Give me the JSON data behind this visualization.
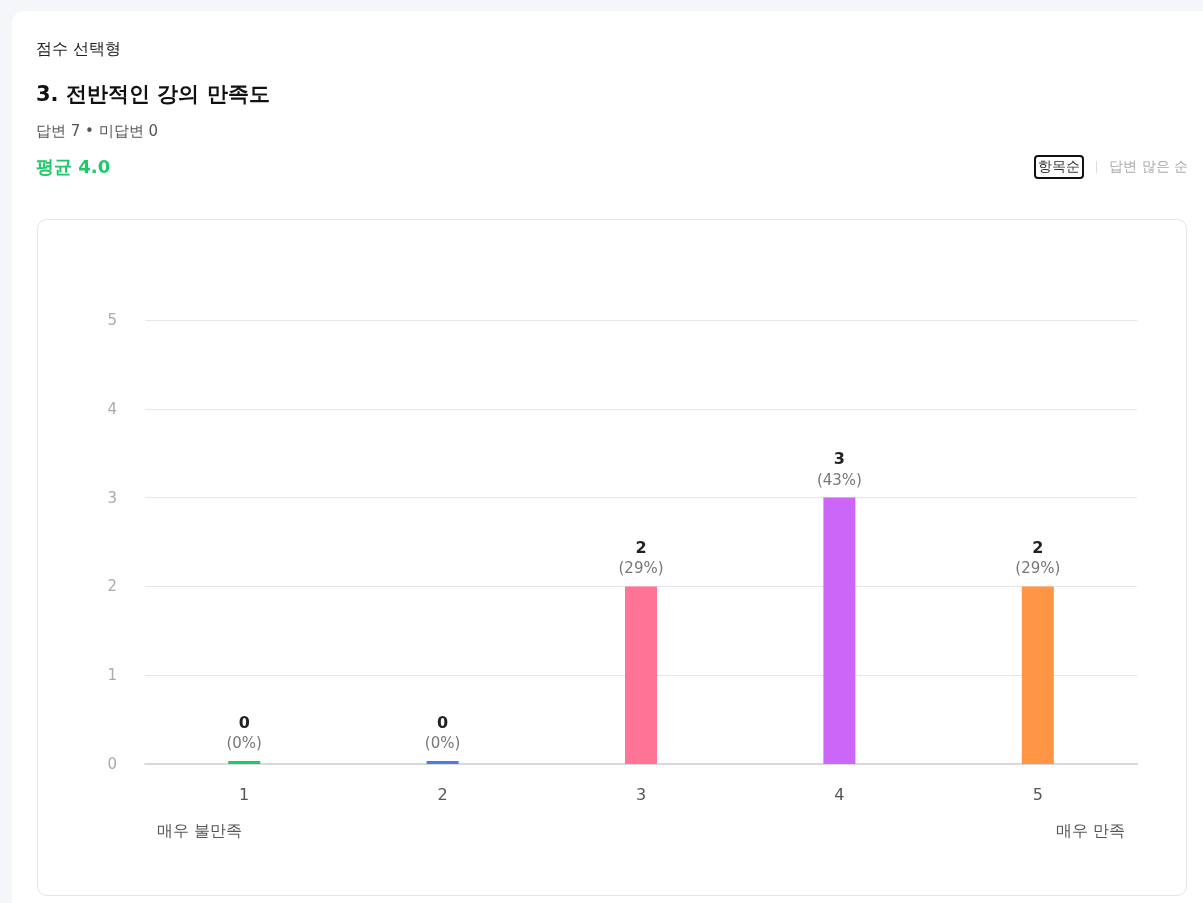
{
  "chart_data": {
    "type": "bar",
    "subtitle": "점수 선택형",
    "title": "3. 전반적인 강의 만족도",
    "categories": [
      "1",
      "2",
      "3",
      "4",
      "5"
    ],
    "values": [
      0,
      0,
      2,
      3,
      2
    ],
    "colors": [
      "#1ec86b",
      "#4b7be5",
      "#ff7396",
      "#cc66f8",
      "#ff9545"
    ],
    "value_labels": [
      "0\n(0%)",
      "0\n(0%)",
      "2\n(29%)",
      "3\n(43%)",
      "2\n(29%)"
    ],
    "ylim": [
      0,
      5
    ],
    "yticks": [
      0,
      1,
      2,
      3,
      4,
      5
    ],
    "grid": "y",
    "annotations": [
      "답변 7 • 미답변 0",
      "평균 4.0",
      "항목순",
      "답변 많은 순",
      "매우 불만족",
      "매우 만족"
    ]
  }
}
